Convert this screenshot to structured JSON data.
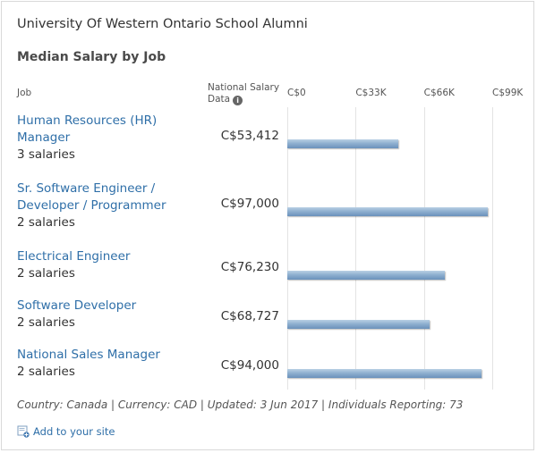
{
  "header": {
    "title": "University Of Western Ontario School Alumni",
    "subtitle": "Median Salary by Job"
  },
  "columns": {
    "job": "Job",
    "national_line1": "National Salary",
    "national_line2": "Data"
  },
  "chart_data": {
    "type": "bar",
    "orientation": "horizontal",
    "categories": [
      "Human Resources (HR) Manager",
      "Sr. Software Engineer / Developer / Programmer",
      "Electrical Engineer",
      "Software Developer",
      "National Sales Manager"
    ],
    "values": [
      53412,
      97000,
      76230,
      68727,
      94000
    ],
    "value_labels": [
      "C$53,412",
      "C$97,000",
      "C$76,230",
      "C$68,727",
      "C$94,000"
    ],
    "counts": [
      "3 salaries",
      "2 salaries",
      "2 salaries",
      "2 salaries",
      "2 salaries"
    ],
    "xlim": [
      0,
      99000
    ],
    "xticks": [
      0,
      33000,
      66000,
      99000
    ],
    "xtick_labels": [
      "C$0",
      "C$33K",
      "C$66K",
      "C$99K"
    ],
    "grid": true,
    "bar_color": "#7a9ec6"
  },
  "footer": {
    "note": "Country: Canada | Currency: CAD | Updated: 3 Jun 2017 | Individuals Reporting: 73",
    "add_link": "Add to your site"
  }
}
